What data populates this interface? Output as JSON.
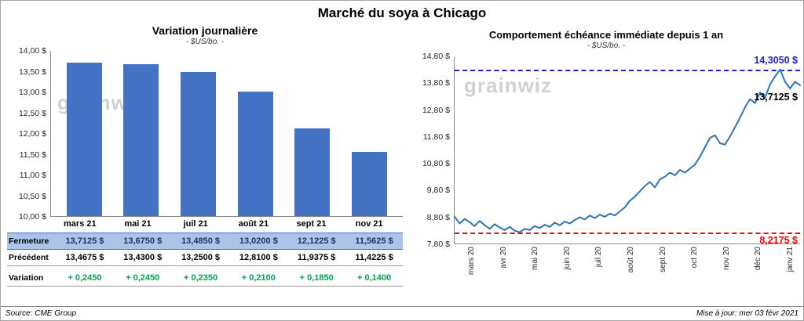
{
  "page": {
    "title": "Marché du soya à Chicago",
    "source_note": "Source: CME Group",
    "update_note": "Mise à jour: mer 03 févr 2021",
    "watermark": "grainwiz"
  },
  "left_chart": {
    "title": "Variation journalière",
    "subtitle": "- $US/bo. -"
  },
  "right_chart": {
    "title": "Comportement échéance immédiate depuis 1 an",
    "subtitle": "- $US/bo. -",
    "max_label": "14,3050 $",
    "last_label": "13,7125 $",
    "min_label": "8,2175 $"
  },
  "table": {
    "rows": [
      {
        "label": "Fermeture",
        "style": "fermeture",
        "values": [
          "13,7125 $",
          "13,6750 $",
          "13,4850 $",
          "13,0200 $",
          "12,1225 $",
          "11,5625 $"
        ]
      },
      {
        "label": "Précédent",
        "style": "precedent",
        "values": [
          "13,4675 $",
          "13,4300 $",
          "13,2500 $",
          "12,8100 $",
          "11,9375 $",
          "11,4225 $"
        ]
      },
      {
        "label": "Variation",
        "style": "variation",
        "values": [
          "+ 0,2450",
          "+ 0,2450",
          "+ 0,2350",
          "+ 0,2100",
          "+ 0,1850",
          "+ 0,1400"
        ]
      }
    ]
  },
  "chart_data": [
    {
      "type": "bar",
      "title": "Variation journalière",
      "ylabel": "$US/bo.",
      "categories": [
        "mars 21",
        "mai 21",
        "juil 21",
        "août 21",
        "sept 21",
        "nov 21"
      ],
      "values": [
        13.7125,
        13.675,
        13.485,
        13.02,
        12.1225,
        11.5625
      ],
      "ylim": [
        10,
        14
      ],
      "ytick_labels": [
        "14,00 $",
        "13,50 $",
        "13,00 $",
        "12,50 $",
        "12,00 $",
        "11,50 $",
        "11,00 $",
        "10,50 $",
        "10,00 $"
      ],
      "grid": false,
      "legend": false
    },
    {
      "type": "line",
      "title": "Comportement échéance immédiate depuis 1 an",
      "ylabel": "$US/bo.",
      "x_labels": [
        "mars 20",
        "avr 20",
        "mai 20",
        "juin 20",
        "juil 20",
        "août 20",
        "sept 20",
        "oct 20",
        "nov 20",
        "déc 20",
        "janv 21"
      ],
      "values": [
        8.8,
        8.55,
        8.72,
        8.6,
        8.45,
        8.65,
        8.48,
        8.35,
        8.52,
        8.4,
        8.3,
        8.42,
        8.28,
        8.2175,
        8.35,
        8.3,
        8.45,
        8.38,
        8.5,
        8.42,
        8.58,
        8.48,
        8.62,
        8.55,
        8.68,
        8.78,
        8.7,
        8.85,
        8.75,
        8.88,
        8.8,
        8.92,
        8.85,
        9.0,
        9.15,
        9.4,
        9.55,
        9.75,
        9.95,
        10.1,
        9.9,
        10.2,
        10.3,
        10.45,
        10.35,
        10.55,
        10.45,
        10.6,
        10.75,
        11.05,
        11.4,
        11.75,
        11.85,
        11.55,
        11.5,
        11.8,
        12.15,
        12.5,
        12.9,
        13.2,
        13.05,
        13.45,
        13.25,
        13.75,
        14.05,
        14.305,
        13.85,
        13.6,
        13.85,
        13.7125
      ],
      "ylim": [
        7.8,
        14.8
      ],
      "ytick_labels": [
        "14,80 $",
        "13,80 $",
        "12,80 $",
        "11,80 $",
        "10,80 $",
        "9,80 $",
        "8,80 $",
        "7,80 $"
      ],
      "max_line": 14.305,
      "min_line": 8.2175,
      "last_value": 13.7125,
      "grid": false,
      "legend": false
    }
  ],
  "colors": {
    "bar_fill": "#4472C4",
    "line_stroke": "#2E74B5",
    "max_line": "#2222CC",
    "min_line": "#FF0000",
    "variation_green": "#00A650",
    "fermeture_bg": "#A9C6E9",
    "fermeture_text": "#17375E"
  }
}
